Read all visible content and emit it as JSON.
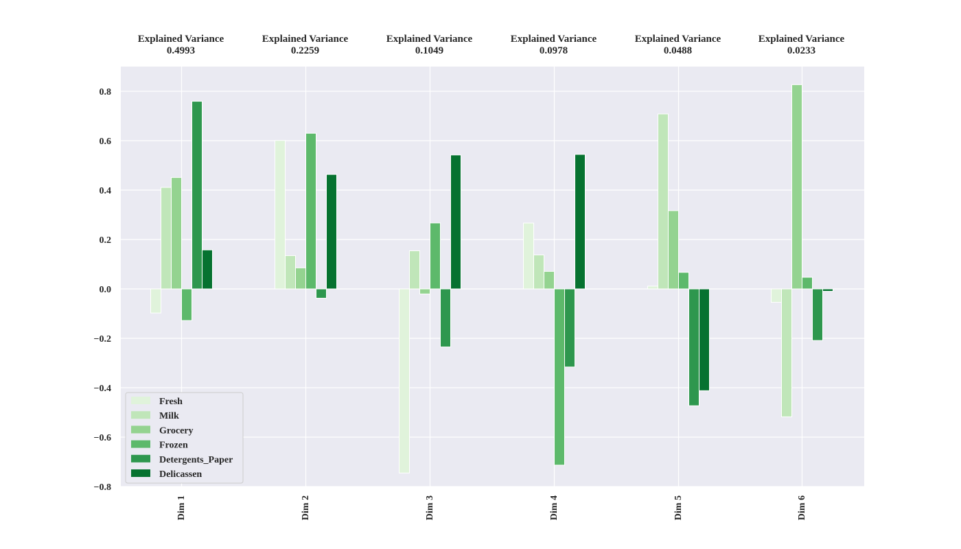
{
  "chart_data": {
    "type": "bar",
    "title": "",
    "xlabel": "",
    "ylabel": "",
    "categories": [
      "Dim 1",
      "Dim 2",
      "Dim 3",
      "Dim 4",
      "Dim 5",
      "Dim 6"
    ],
    "explained_variance_label": "Explained Variance",
    "explained_variance": [
      "0.4993",
      "0.2259",
      "0.1049",
      "0.0978",
      "0.0488",
      "0.0233"
    ],
    "ylim": [
      -0.8,
      0.9
    ],
    "yticks": [
      -0.8,
      -0.6,
      -0.4,
      -0.2,
      0.0,
      0.2,
      0.4,
      0.6,
      0.8
    ],
    "ytick_labels": [
      "−0.8",
      "−0.6",
      "−0.4",
      "−0.2",
      "0.0",
      "0.2",
      "0.4",
      "0.6",
      "0.8"
    ],
    "grid": true,
    "legend_position": "lower-left",
    "series": [
      {
        "name": "Fresh",
        "color": "#e0f3db",
        "values": [
          -0.0976,
          0.6008,
          -0.7452,
          0.2667,
          0.0114,
          -0.0543
        ]
      },
      {
        "name": "Milk",
        "color": "#c0e6b9",
        "values": [
          0.4109,
          0.1348,
          0.1544,
          0.1375,
          0.7083,
          -0.5177
        ]
      },
      {
        "name": "Grocery",
        "color": "#94d390",
        "values": [
          0.4511,
          0.0852,
          -0.0204,
          0.071,
          0.3168,
          0.8267
        ]
      },
      {
        "name": "Frozen",
        "color": "#5db96b",
        "values": [
          -0.128,
          0.63,
          0.267,
          -0.7133,
          0.0671,
          0.0471
        ]
      },
      {
        "name": "Detergents_Paper",
        "color": "#2e974e",
        "values": [
          0.7595,
          -0.0376,
          -0.2349,
          -0.316,
          -0.4729,
          -0.2088
        ]
      },
      {
        "name": "Delicassen",
        "color": "#067230",
        "values": [
          0.1579,
          0.4634,
          0.5422,
          0.5445,
          -0.412,
          -0.0097
        ]
      }
    ]
  }
}
